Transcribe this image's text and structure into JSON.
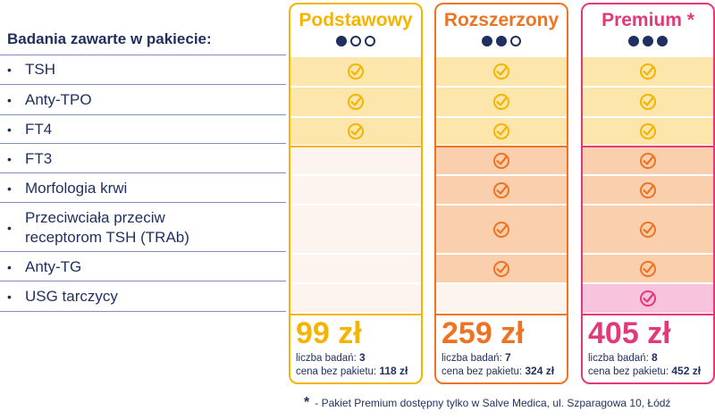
{
  "header": {
    "title": "Badania zawarte w pakiecie:"
  },
  "rows": [
    {
      "label": "TSH"
    },
    {
      "label": "Anty-TPO"
    },
    {
      "label": "FT4"
    },
    {
      "label": "FT3"
    },
    {
      "label": "Morfologia krwi"
    },
    {
      "label": "Przeciwciała przeciw receptorom TSH (TRAb)"
    },
    {
      "label": "Anty-TG"
    },
    {
      "label": "USG tarczycy"
    }
  ],
  "packages": [
    {
      "name": "Podstawowy",
      "dots_filled": 1,
      "dots_total": 3,
      "accent": "#f5b400",
      "price": "99 zł",
      "count_label": "liczba badań:",
      "count": "3",
      "full_label": "cena bez pakietu:",
      "full_price": "118 zł",
      "included": [
        true,
        true,
        true,
        false,
        false,
        false,
        false,
        false
      ]
    },
    {
      "name": "Rozszerzony",
      "dots_filled": 2,
      "dots_total": 3,
      "accent": "#ee7322",
      "price": "259 zł",
      "count_label": "liczba badań:",
      "count": "7",
      "full_label": "cena bez pakietu:",
      "full_price": "324 zł",
      "included": [
        true,
        true,
        true,
        true,
        true,
        true,
        true,
        false
      ]
    },
    {
      "name": "Premium *",
      "dots_filled": 3,
      "dots_total": 3,
      "accent": "#e23a78",
      "price": "405 zł",
      "count_label": "liczba badań:",
      "count": "8",
      "full_label": "cena bez pakietu:",
      "full_price": "452 zł",
      "included": [
        true,
        true,
        true,
        true,
        true,
        true,
        true,
        true
      ]
    }
  ],
  "footnote": {
    "star": "*",
    "text": "- Pakiet Premium dostępny tylko w Salve Medica, ul. Szparagowa 10, Łódź"
  },
  "colors": {
    "navy": "#1f2f5e",
    "yellow_fill": "#fde6ab",
    "orange_fill": "#f9cfae",
    "pink_fill": "#f7c3dd",
    "empty_fill": "#fef4ef"
  }
}
